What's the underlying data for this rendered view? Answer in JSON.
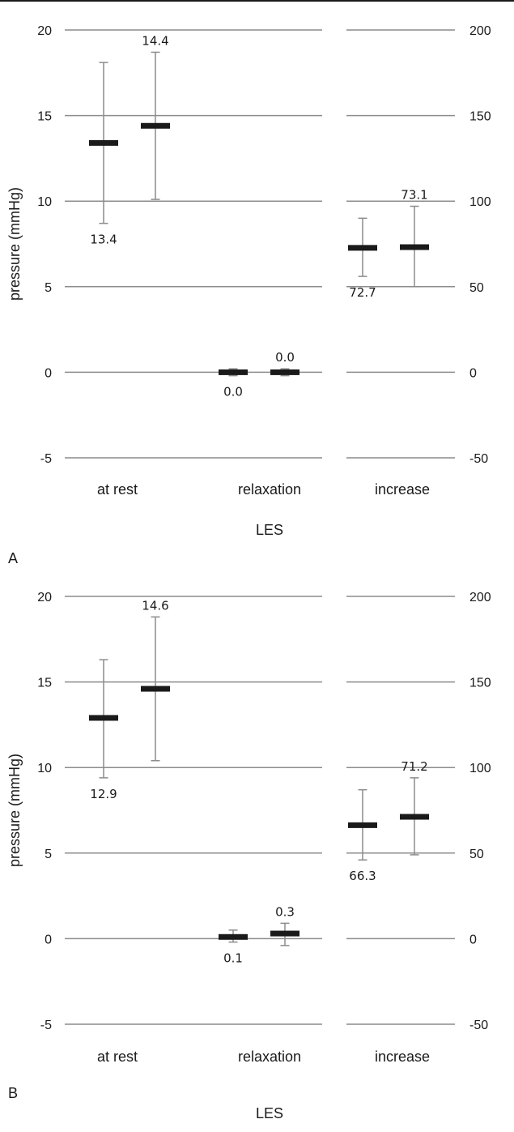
{
  "figure_colors": {
    "grid": "#8c8c8c",
    "errorbar": "#8c8c8c",
    "marker": "#1a1a1a",
    "text": "#1a1a1a"
  },
  "chart_data": [
    {
      "panel": "A",
      "type": "scatter",
      "xlabel": "LES",
      "ylabel": "pressure (mmHg)",
      "ylim_left": [
        -5,
        20
      ],
      "ylim_right": [
        -50,
        200
      ],
      "yticks_left": [
        "20",
        "15",
        "10",
        "5",
        "0",
        "-5"
      ],
      "yticks_right": [
        "200",
        "150",
        "100",
        "50",
        "0",
        "-50"
      ],
      "categories": [
        "at rest",
        "relaxation",
        "increase"
      ],
      "grid": true,
      "groups": [
        {
          "category": "at rest",
          "axis": "left",
          "points": [
            {
              "mean": 13.4,
              "low": 8.7,
              "high": 18.1,
              "label": "13.4"
            },
            {
              "mean": 14.4,
              "low": 10.1,
              "high": 18.7,
              "label": "14.4"
            }
          ]
        },
        {
          "category": "relaxation",
          "axis": "left",
          "points": [
            {
              "mean": 0.0,
              "low": -0.2,
              "high": 0.2,
              "label": "0.0"
            },
            {
              "mean": 0.0,
              "low": -0.2,
              "high": 0.2,
              "label": "0.0"
            }
          ]
        },
        {
          "category": "increase",
          "axis": "right",
          "points": [
            {
              "mean": 72.7,
              "low": 56.0,
              "high": 90.0,
              "label": "72.7"
            },
            {
              "mean": 73.1,
              "low": 50.0,
              "high": 97.0,
              "label": "73.1"
            }
          ]
        }
      ]
    },
    {
      "panel": "B",
      "type": "scatter",
      "xlabel": "LES",
      "ylabel": "pressure (mmHg)",
      "ylim_left": [
        -5,
        20
      ],
      "ylim_right": [
        -50,
        200
      ],
      "yticks_left": [
        "20",
        "15",
        "10",
        "5",
        "0",
        "-5"
      ],
      "yticks_right": [
        "200",
        "150",
        "100",
        "50",
        "0",
        "-50"
      ],
      "categories": [
        "at rest",
        "relaxation",
        "increase"
      ],
      "grid": true,
      "groups": [
        {
          "category": "at rest",
          "axis": "left",
          "points": [
            {
              "mean": 12.9,
              "low": 9.4,
              "high": 16.3,
              "label": "12.9"
            },
            {
              "mean": 14.6,
              "low": 10.4,
              "high": 18.8,
              "label": "14.6"
            }
          ]
        },
        {
          "category": "relaxation",
          "axis": "left",
          "points": [
            {
              "mean": 0.1,
              "low": -0.2,
              "high": 0.5,
              "label": "0.1"
            },
            {
              "mean": 0.3,
              "low": -0.4,
              "high": 0.9,
              "label": "0.3"
            }
          ]
        },
        {
          "category": "increase",
          "axis": "right",
          "points": [
            {
              "mean": 66.3,
              "low": 46.0,
              "high": 87.0,
              "label": "66.3"
            },
            {
              "mean": 71.2,
              "low": 49.0,
              "high": 94.0,
              "label": "71.2"
            }
          ]
        }
      ]
    }
  ]
}
